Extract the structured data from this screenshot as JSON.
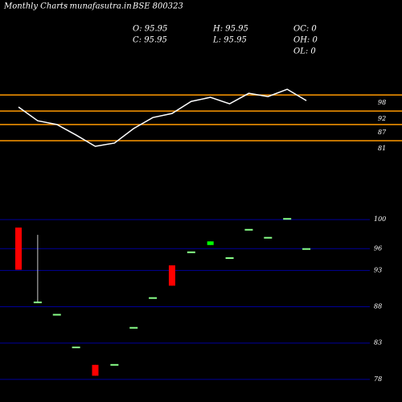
{
  "chart_data": {
    "type": "candlestick",
    "title": "Monthly Charts",
    "source": "- munafasutra.in",
    "symbol": "BSE 800323",
    "info": [
      "O: 95.95",
      "H: 95.95",
      "OC: 0",
      "C: 95.95",
      "L: 95.95",
      "OH: 0",
      "OL: 0"
    ],
    "open": [
      98.9,
      88.6,
      86.9,
      82.4,
      80.0,
      80.0,
      85.1,
      89.2,
      93.7,
      95.5,
      96.5,
      94.7,
      98.6,
      97.5,
      100.1,
      95.95
    ],
    "high": [
      98.9,
      97.9,
      86.9,
      82.4,
      80.0,
      80.0,
      85.1,
      89.2,
      93.7,
      95.5,
      97.0,
      94.7,
      98.6,
      97.5,
      100.1,
      95.95
    ],
    "low": [
      93.1,
      88.6,
      86.9,
      82.4,
      78.5,
      80.0,
      85.1,
      89.2,
      90.9,
      95.5,
      96.5,
      94.7,
      98.6,
      97.5,
      100.1,
      95.95
    ],
    "close": [
      93.1,
      88.6,
      86.9,
      82.4,
      78.5,
      80.0,
      85.1,
      89.2,
      90.9,
      95.5,
      97.0,
      94.7,
      98.6,
      97.5,
      100.1,
      95.95
    ],
    "up_color": "#00ff00",
    "down_color": "#ff0000",
    "flat_color": "#88ff88",
    "ylim": [
      77.1,
      100.9
    ],
    "yticks": [
      100,
      96,
      93,
      88,
      83,
      78
    ],
    "grid_color": "#000099",
    "line": {
      "values": [
        93.5,
        88.4,
        87.0,
        83.1,
        78.9,
        80.1,
        85.5,
        89.6,
        91.1,
        95.6,
        97.1,
        94.7,
        98.6,
        97.4,
        100.1,
        95.9
      ],
      "color": "#ffffff",
      "ylim": [
        76.5,
        103.4
      ],
      "yticks": [
        98,
        92,
        87,
        81
      ],
      "grid_color": "#ff9900"
    }
  }
}
